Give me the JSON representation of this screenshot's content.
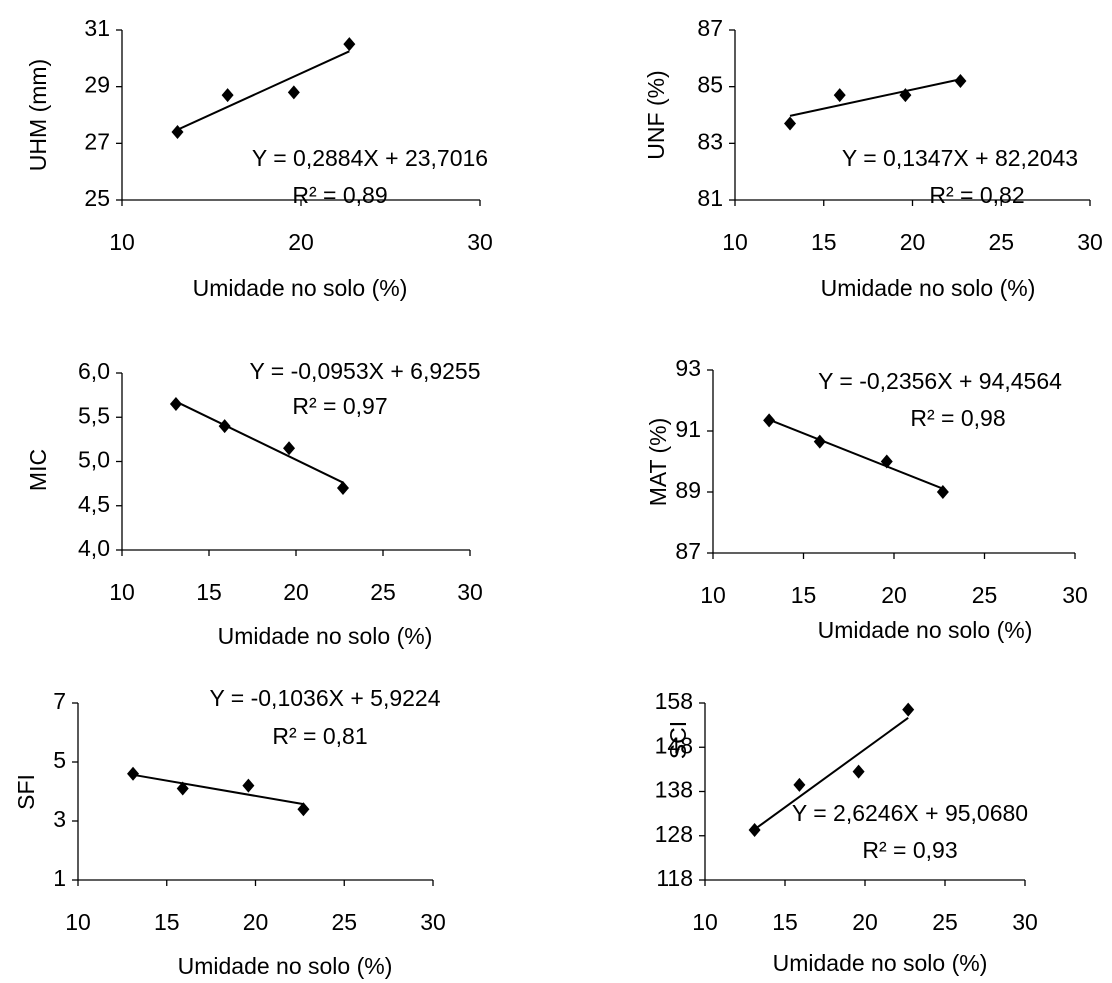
{
  "chart_data": [
    {
      "type": "scatter",
      "y_label": "UHM (mm)",
      "x_label": "Umidade no solo (%)",
      "equation": "Y = 0,2884X + 23,7016",
      "r2": "R² = 0,89",
      "trend": {
        "slope": 0.2884,
        "intercept": 23.7016
      },
      "x": [
        13.1,
        15.9,
        19.6,
        22.7
      ],
      "values": [
        27.4,
        28.7,
        28.8,
        30.5
      ],
      "color": "#000000",
      "xlim": [
        10,
        30
      ],
      "xticks": [
        10,
        20,
        30
      ],
      "ylim": [
        25,
        31
      ],
      "yticks": [
        25,
        27,
        29,
        31
      ]
    },
    {
      "type": "scatter",
      "y_label": "UNF (%)",
      "x_label": "Umidade no solo (%)",
      "equation": "Y = 0,1347X + 82,2043",
      "r2": "R² = 0,82",
      "trend": {
        "slope": 0.1347,
        "intercept": 82.2043
      },
      "x": [
        13.1,
        15.9,
        19.6,
        22.7
      ],
      "values": [
        83.7,
        84.7,
        84.7,
        85.2
      ],
      "color": "#000000",
      "xlim": [
        10,
        30
      ],
      "xticks": [
        10,
        15,
        20,
        25,
        30
      ],
      "ylim": [
        81,
        87
      ],
      "yticks": [
        81,
        83,
        85,
        87
      ]
    },
    {
      "type": "scatter",
      "y_label": "MIC",
      "x_label": "Umidade no solo (%)",
      "equation": "Y = -0,0953X + 6,9255",
      "r2": "R² = 0,97",
      "trend": {
        "slope": -0.0953,
        "intercept": 6.9255
      },
      "x": [
        13.1,
        15.9,
        19.6,
        22.7
      ],
      "values": [
        5.65,
        5.4,
        5.15,
        4.7
      ],
      "color": "#000000",
      "xlim": [
        10,
        30
      ],
      "xticks": [
        10,
        15,
        20,
        25,
        30
      ],
      "ylim": [
        4,
        6
      ],
      "yticks": [
        {
          "value": 4,
          "label": "4,0"
        },
        {
          "value": 4.5,
          "label": "4,5"
        },
        {
          "value": 5,
          "label": "5,0"
        },
        {
          "value": 5.5,
          "label": "5,5"
        },
        {
          "value": 6,
          "label": "6,0"
        }
      ]
    },
    {
      "type": "scatter",
      "y_label": "MAT (%)",
      "x_label": "Umidade no solo (%)",
      "equation": "Y = -0,2356X + 94,4564",
      "r2": "R² = 0,98",
      "trend": {
        "slope": -0.2356,
        "intercept": 94.4564
      },
      "x": [
        13.1,
        15.9,
        19.6,
        22.7
      ],
      "values": [
        91.35,
        90.65,
        90.0,
        89.0
      ],
      "color": "#000000",
      "xlim": [
        10,
        30
      ],
      "xticks": [
        10,
        15,
        20,
        25,
        30
      ],
      "ylim": [
        87,
        93
      ],
      "yticks": [
        87,
        89,
        91,
        93
      ]
    },
    {
      "type": "scatter",
      "y_label": "SFI",
      "x_label": "Umidade no solo (%)",
      "equation": "Y = -0,1036X + 5,9224",
      "r2": "R² = 0,81",
      "trend": {
        "slope": -0.1036,
        "intercept": 5.9224
      },
      "x": [
        13.1,
        15.9,
        19.6,
        22.7
      ],
      "values": [
        4.6,
        4.1,
        4.2,
        3.4
      ],
      "color": "#000000",
      "xlim": [
        10,
        30
      ],
      "xticks": [
        10,
        15,
        20,
        25,
        30
      ],
      "ylim": [
        1,
        7
      ],
      "yticks": [
        1,
        3,
        5,
        7
      ]
    },
    {
      "type": "scatter",
      "y_label": "SCI",
      "x_label": "Umidade no solo (%)",
      "equation": "Y = 2,6246X + 95,0680",
      "r2": "R² = 0,93",
      "trend": {
        "slope": 2.6246,
        "intercept": 95.068
      },
      "x": [
        13.1,
        15.9,
        19.6,
        22.7
      ],
      "values": [
        129.3,
        139.5,
        142.5,
        156.5
      ],
      "color": "#000000",
      "xlim": [
        10,
        30
      ],
      "xticks": [
        10,
        15,
        20,
        25,
        30
      ],
      "ylim": [
        118,
        158
      ],
      "yticks": [
        118,
        128,
        138,
        148,
        158
      ]
    }
  ]
}
